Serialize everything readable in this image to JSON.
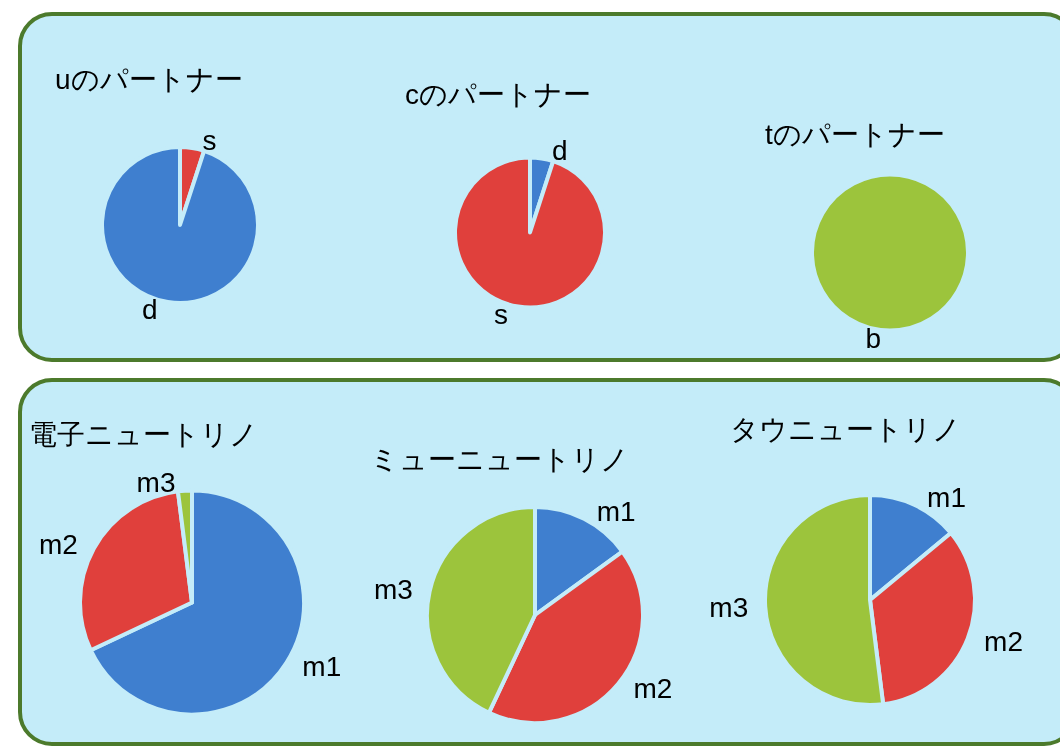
{
  "chart_data": [
    {
      "type": "pie",
      "title": "uのパートナー",
      "categories": [
        "s",
        "d"
      ],
      "values": [
        5,
        95
      ],
      "colors": [
        "#e0403c",
        "#3f7fcf"
      ]
    },
    {
      "type": "pie",
      "title": "cのパートナー",
      "categories": [
        "d",
        "s"
      ],
      "values": [
        5,
        95
      ],
      "colors": [
        "#3f7fcf",
        "#e0403c"
      ]
    },
    {
      "type": "pie",
      "title": "tのパートナー",
      "categories": [
        "b"
      ],
      "values": [
        100
      ],
      "colors": [
        "#9cc43c"
      ]
    },
    {
      "type": "pie",
      "title": "電子ニュートリノ",
      "categories": [
        "m1",
        "m2",
        "m3"
      ],
      "values": [
        68,
        30,
        2
      ],
      "colors": [
        "#3f7fcf",
        "#e0403c",
        "#9cc43c"
      ]
    },
    {
      "type": "pie",
      "title": "ミューニュートリノ",
      "categories": [
        "m1",
        "m2",
        "m3"
      ],
      "values": [
        15,
        42,
        43
      ],
      "colors": [
        "#3f7fcf",
        "#e0403c",
        "#9cc43c"
      ]
    },
    {
      "type": "pie",
      "title": "タウニュートリノ",
      "categories": [
        "m1",
        "m2",
        "m3"
      ],
      "values": [
        14,
        34,
        52
      ],
      "colors": [
        "#3f7fcf",
        "#e0403c",
        "#9cc43c"
      ]
    }
  ]
}
